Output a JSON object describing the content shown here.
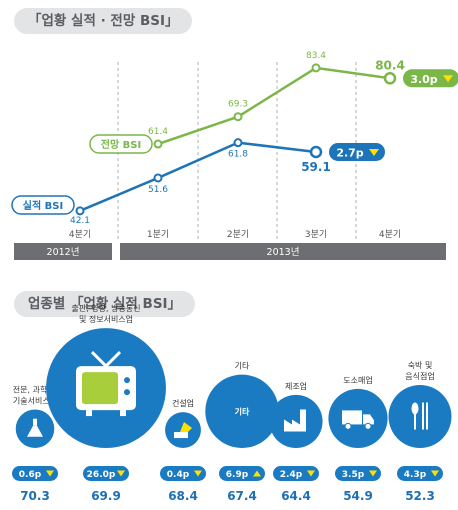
{
  "title_top": "「업황 실적 · 전망 BSI」",
  "title_bottom": "업종별 「업황 실적 BSI」",
  "colors": {
    "actual": "#1e74b8",
    "forecast": "#7ab648",
    "grid": "#b0b0b0",
    "year_band": "#6d6e71",
    "circle": "#1b7bc2",
    "icon_white": "#ffffff",
    "value_text": "#1e6fb3",
    "pill_bg": "#e3e4e6"
  },
  "chart_data": [
    {
      "type": "line",
      "title": "「업황 실적 · 전망 BSI」",
      "categories": [
        "4분기",
        "1분기",
        "2분기",
        "3분기",
        "4분기"
      ],
      "year_labels": [
        {
          "label": "2012년",
          "span": [
            "4분기",
            "4분기"
          ]
        },
        {
          "label": "2013년",
          "span": [
            "1분기",
            "4분기"
          ]
        }
      ],
      "series": [
        {
          "name": "실적 BSI",
          "color": "#1e74b8",
          "values": [
            42.1,
            51.6,
            61.8,
            59.1,
            null
          ],
          "value_labels": [
            "42.1",
            "51.6",
            "61.8",
            "59.1",
            ""
          ]
        },
        {
          "name": "전망 BSI",
          "color": "#7ab648",
          "values": [
            null,
            61.4,
            69.3,
            83.4,
            80.4
          ],
          "value_labels": [
            "",
            "61.4",
            "69.3",
            "83.4",
            "80.4"
          ]
        }
      ],
      "change_badges": [
        {
          "series": "실적 BSI",
          "label": "2.7p",
          "direction": "down"
        },
        {
          "series": "전망 BSI",
          "label": "3.0p",
          "direction": "down"
        }
      ],
      "grid": "vertical-dashed",
      "ylim": [
        38,
        88
      ]
    },
    {
      "type": "bubble",
      "title": "업종별 「업황 실적 BSI」",
      "size_encodes": "change",
      "industries": [
        {
          "name": "전문, 과학 및\n기술서비스업",
          "icon": "flask-icon",
          "change": 0.6,
          "change_label": "0.6p",
          "direction": "down",
          "value": 70.3,
          "value_label": "70.3"
        },
        {
          "name": "출판, 영상, 방송통신\n및 정보서비스업",
          "icon": "tv-icon",
          "change": 26.0,
          "change_label": "26.0p",
          "direction": "down",
          "value": 69.9,
          "value_label": "69.9"
        },
        {
          "name": "건설업",
          "icon": "excavator-icon",
          "change": 0.4,
          "change_label": "0.4p",
          "direction": "down",
          "value": 68.4,
          "value_label": "68.4"
        },
        {
          "name": "기타",
          "icon": "",
          "change": 6.9,
          "change_label": "6.9p",
          "direction": "up",
          "value": 67.4,
          "value_label": "67.4"
        },
        {
          "name": "제조업",
          "icon": "factory-icon",
          "change": 2.4,
          "change_label": "2.4p",
          "direction": "down",
          "value": 64.4,
          "value_label": "64.4"
        },
        {
          "name": "도소매업",
          "icon": "truck-icon",
          "change": 3.5,
          "change_label": "3.5p",
          "direction": "down",
          "value": 54.9,
          "value_label": "54.9"
        },
        {
          "name": "숙박 및\n음식점업",
          "icon": "utensils-icon",
          "change": 4.3,
          "change_label": "4.3p",
          "direction": "down",
          "value": 52.3,
          "value_label": "52.3"
        }
      ]
    }
  ]
}
